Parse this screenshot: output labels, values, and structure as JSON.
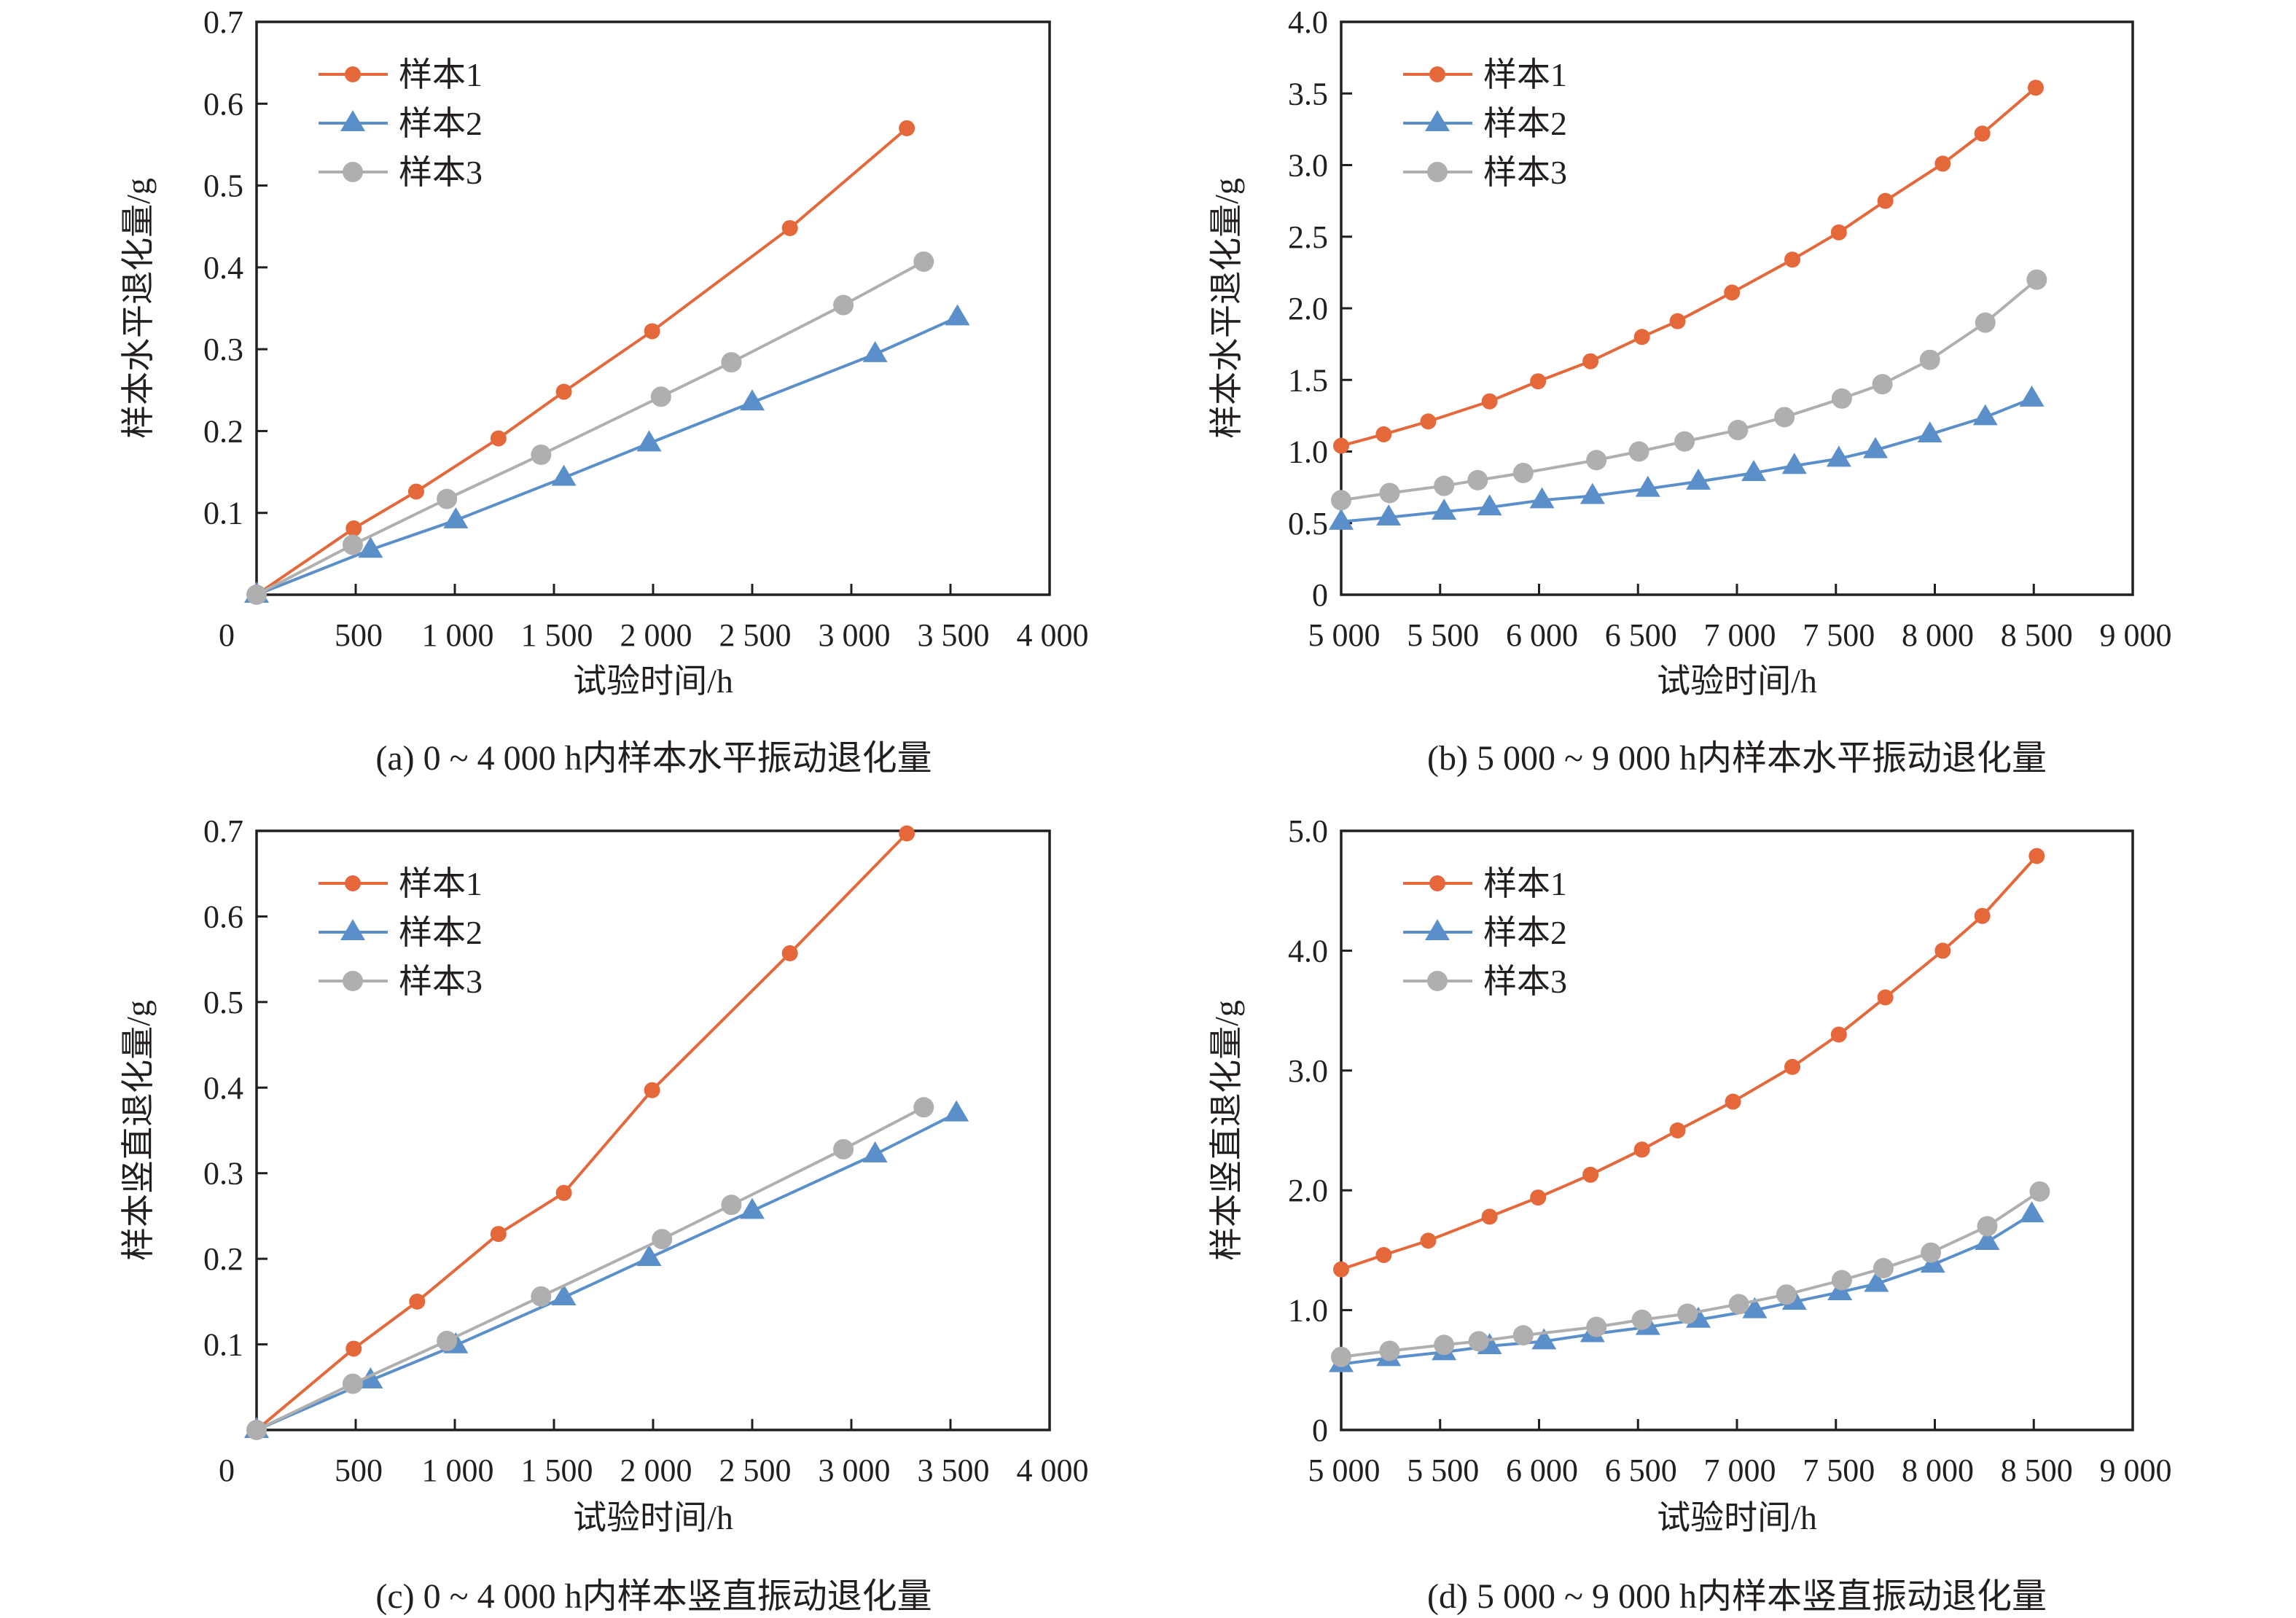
{
  "legend": [
    "样本1",
    "样本2",
    "样本3"
  ],
  "series_colors": {
    "样本1": "#E4683A",
    "样本2": "#5B8FCA",
    "样本3": "#AFAFAF"
  },
  "series_markers": {
    "样本1": "circle-small",
    "样本2": "triangle",
    "样本3": "circle-large"
  },
  "chart_data": [
    {
      "id": "a",
      "type": "line",
      "caption": "(a) 0 ~ 4 000 h内样本水平振动退化量",
      "xlabel": "试验时间/h",
      "ylabel": "样本水平退化量/g",
      "xlim": [
        0,
        4000
      ],
      "ylim": [
        0,
        0.7
      ],
      "xticks": [
        0,
        500,
        1000,
        1500,
        2000,
        2500,
        3000,
        3500,
        4000
      ],
      "xtick_labels": [
        "0",
        "500",
        "1 000",
        "1 500",
        "2 000",
        "2 500",
        "3 000",
        "3 500",
        "4 000"
      ],
      "yticks": [
        0.1,
        0.2,
        0.3,
        0.4,
        0.5,
        0.6,
        0.7
      ],
      "ytick_labels": [
        "0.1",
        "0.2",
        "0.3",
        "0.4",
        "0.5",
        "0.6",
        "0.7"
      ],
      "legend_position": "top-left",
      "grid": false,
      "series": [
        {
          "name": "样本1",
          "x": [
            0,
            490,
            805,
            1220,
            1550,
            1995,
            2690,
            3280
          ],
          "y": [
            0,
            0.081,
            0.126,
            0.191,
            0.248,
            0.322,
            0.448,
            0.57
          ]
        },
        {
          "name": "样本2",
          "x": [
            0,
            575,
            1005,
            1550,
            1980,
            2500,
            3120,
            3535
          ],
          "y": [
            0,
            0.055,
            0.091,
            0.143,
            0.185,
            0.235,
            0.294,
            0.339
          ]
        },
        {
          "name": "样本3",
          "x": [
            0,
            485,
            960,
            1435,
            2040,
            2395,
            2960,
            3365
          ],
          "y": [
            0,
            0.061,
            0.117,
            0.171,
            0.242,
            0.284,
            0.354,
            0.407
          ]
        }
      ]
    },
    {
      "id": "b",
      "type": "line",
      "caption": "(b) 5 000 ~ 9 000 h内样本水平振动退化量",
      "xlabel": "试验时间/h",
      "ylabel": "样本水平退化量/g",
      "xlim": [
        5000,
        9000
      ],
      "ylim": [
        0,
        4.0
      ],
      "xticks": [
        5000,
        5500,
        6000,
        6500,
        7000,
        7500,
        8000,
        8500,
        9000
      ],
      "xtick_labels": [
        "5 000",
        "5 500",
        "6 000",
        "6 500",
        "7 000",
        "7 500",
        "8 000",
        "8 500",
        "9 000"
      ],
      "yticks": [
        0,
        0.5,
        1.0,
        1.5,
        2.0,
        2.5,
        3.0,
        3.5,
        4.0
      ],
      "ytick_labels": [
        "0",
        "0.5",
        "1.0",
        "1.5",
        "2.0",
        "2.5",
        "3.0",
        "3.5",
        "4.0"
      ],
      "legend_position": "top-left",
      "grid": false,
      "series": [
        {
          "name": "样本1",
          "x": [
            5000,
            5215,
            5440,
            5750,
            5995,
            6260,
            6520,
            6700,
            6975,
            7280,
            7515,
            7750,
            8040,
            8240,
            8510
          ],
          "y": [
            1.04,
            1.12,
            1.21,
            1.35,
            1.49,
            1.63,
            1.8,
            1.91,
            2.11,
            2.34,
            2.53,
            2.75,
            3.01,
            3.22,
            3.54
          ]
        },
        {
          "name": "样本2",
          "x": [
            5000,
            5240,
            5520,
            5750,
            6015,
            6270,
            6550,
            6805,
            7085,
            7290,
            7515,
            7700,
            7975,
            8255,
            8490
          ],
          "y": [
            0.51,
            0.54,
            0.58,
            0.61,
            0.66,
            0.69,
            0.74,
            0.79,
            0.85,
            0.9,
            0.95,
            1.01,
            1.12,
            1.24,
            1.37
          ]
        },
        {
          "name": "样本3",
          "x": [
            5000,
            5245,
            5520,
            5690,
            5920,
            6290,
            6505,
            6735,
            7005,
            7240,
            7530,
            7735,
            7975,
            8255,
            8515
          ],
          "y": [
            0.66,
            0.71,
            0.76,
            0.8,
            0.85,
            0.94,
            1.0,
            1.07,
            1.15,
            1.24,
            1.37,
            1.47,
            1.64,
            1.9,
            2.2
          ]
        }
      ]
    },
    {
      "id": "c",
      "type": "line",
      "caption": "(c) 0 ~ 4 000 h内样本竖直振动退化量",
      "xlabel": "试验时间/h",
      "ylabel": "样本竖直退化量/g",
      "xlim": [
        0,
        4000
      ],
      "ylim": [
        0,
        0.7
      ],
      "xticks": [
        0,
        500,
        1000,
        1500,
        2000,
        2500,
        3000,
        3500,
        4000
      ],
      "xtick_labels": [
        "0",
        "500",
        "1 000",
        "1 500",
        "2 000",
        "2 500",
        "3 000",
        "3 500",
        "4 000"
      ],
      "yticks": [
        0.1,
        0.2,
        0.3,
        0.4,
        0.5,
        0.6,
        0.7
      ],
      "ytick_labels": [
        "0.1",
        "0.2",
        "0.3",
        "0.4",
        "0.5",
        "0.6",
        "0.7"
      ],
      "legend_position": "top-left",
      "grid": false,
      "series": [
        {
          "name": "样本1",
          "x": [
            0,
            490,
            810,
            1220,
            1550,
            1995,
            2690,
            3280
          ],
          "y": [
            0,
            0.095,
            0.15,
            0.229,
            0.277,
            0.397,
            0.557,
            0.697
          ]
        },
        {
          "name": "样本2",
          "x": [
            0,
            575,
            1005,
            1550,
            1980,
            2500,
            3120,
            3530
          ],
          "y": [
            0,
            0.058,
            0.099,
            0.155,
            0.201,
            0.256,
            0.322,
            0.37
          ]
        },
        {
          "name": "样本3",
          "x": [
            0,
            485,
            960,
            1435,
            2045,
            2395,
            2960,
            3365
          ],
          "y": [
            0,
            0.054,
            0.104,
            0.156,
            0.223,
            0.263,
            0.328,
            0.377
          ]
        }
      ]
    },
    {
      "id": "d",
      "type": "line",
      "caption": "(d) 5 000 ~ 9 000 h内样本竖直振动退化量",
      "xlabel": "试验时间/h",
      "ylabel": "样本竖直退化量/g",
      "xlim": [
        5000,
        9000
      ],
      "ylim": [
        0,
        5.0
      ],
      "xticks": [
        5000,
        5500,
        6000,
        6500,
        7000,
        7500,
        8000,
        8500,
        9000
      ],
      "xtick_labels": [
        "5 000",
        "5 500",
        "6 000",
        "6 500",
        "7 000",
        "7 500",
        "8 000",
        "8 500",
        "9 000"
      ],
      "yticks": [
        0,
        1.0,
        2.0,
        3.0,
        4.0,
        5.0
      ],
      "ytick_labels": [
        "0",
        "1.0",
        "2.0",
        "3.0",
        "4.0",
        "5.0"
      ],
      "legend_position": "top-left",
      "grid": false,
      "series": [
        {
          "name": "样本1",
          "x": [
            5000,
            5215,
            5440,
            5750,
            5995,
            6260,
            6520,
            6700,
            6980,
            7280,
            7515,
            7750,
            8040,
            8240,
            8515
          ],
          "y": [
            1.34,
            1.46,
            1.58,
            1.78,
            1.94,
            2.13,
            2.34,
            2.5,
            2.74,
            3.03,
            3.3,
            3.61,
            4.0,
            4.29,
            4.79
          ]
        },
        {
          "name": "样本2",
          "x": [
            5000,
            5240,
            5520,
            5750,
            6025,
            6270,
            6550,
            6805,
            7090,
            7290,
            7520,
            7705,
            7990,
            8265,
            8490
          ],
          "y": [
            0.55,
            0.6,
            0.65,
            0.7,
            0.74,
            0.8,
            0.86,
            0.92,
            1.0,
            1.07,
            1.15,
            1.22,
            1.38,
            1.57,
            1.8
          ]
        },
        {
          "name": "样本3",
          "x": [
            5000,
            5245,
            5520,
            5695,
            5920,
            6290,
            6520,
            6750,
            7010,
            7250,
            7530,
            7740,
            7980,
            8265,
            8530
          ],
          "y": [
            0.61,
            0.66,
            0.71,
            0.74,
            0.79,
            0.86,
            0.92,
            0.97,
            1.05,
            1.13,
            1.25,
            1.35,
            1.48,
            1.7,
            1.99
          ]
        }
      ]
    }
  ]
}
